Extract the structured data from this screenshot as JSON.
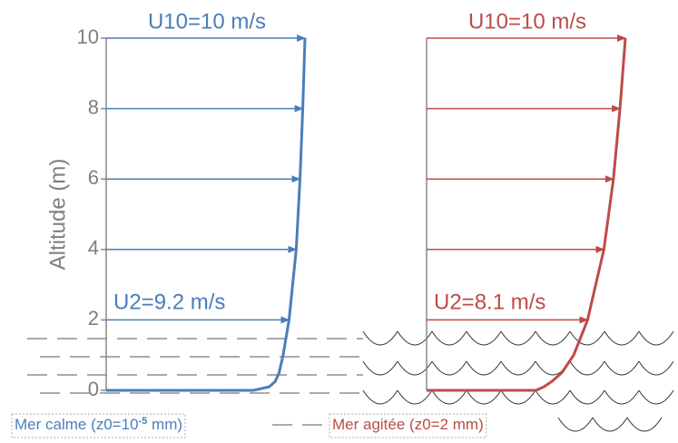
{
  "chart_data": [
    {
      "type": "line",
      "color": "#4a7ebb",
      "ylabel": "Altitude (m)",
      "xlim": [
        0,
        10
      ],
      "ylim": [
        0,
        10
      ],
      "yticks": [
        0,
        2,
        4,
        6,
        8,
        10
      ],
      "top_label": "U10=10 m/s",
      "bottom_label": "U2=9.2 m/s",
      "caption": [
        "Mer calme (z0=10",
        "-5",
        " mm)"
      ],
      "arrows": {
        "altitude": [
          2,
          4,
          6,
          8,
          10
        ],
        "speed": [
          9.2,
          9.56,
          9.75,
          9.89,
          10
        ]
      },
      "curve": {
        "altitude": [
          0,
          0,
          0.1,
          0.25,
          0.5,
          1,
          2,
          4,
          6,
          8,
          10
        ],
        "speed": [
          0,
          7.4,
          8.2,
          8.5,
          8.7,
          8.9,
          9.2,
          9.56,
          9.75,
          9.89,
          10
        ]
      }
    },
    {
      "type": "line",
      "color": "#be4b48",
      "xlim": [
        0,
        10
      ],
      "ylim": [
        0,
        10
      ],
      "top_label": "U10=10 m/s",
      "bottom_label": "U2=8.1 m/s",
      "caption": [
        "Mer agitée (z0=2 mm)"
      ],
      "arrows": {
        "altitude": [
          2,
          4,
          6,
          8,
          10
        ],
        "speed": [
          8.1,
          8.92,
          9.4,
          9.73,
          10
        ]
      },
      "curve": {
        "altitude": [
          0,
          0,
          0.1,
          0.25,
          0.5,
          1,
          2,
          4,
          6,
          8,
          10
        ],
        "speed": [
          0,
          5.5,
          5.9,
          6.3,
          6.8,
          7.4,
          8.1,
          8.92,
          9.4,
          9.73,
          10
        ]
      }
    }
  ]
}
